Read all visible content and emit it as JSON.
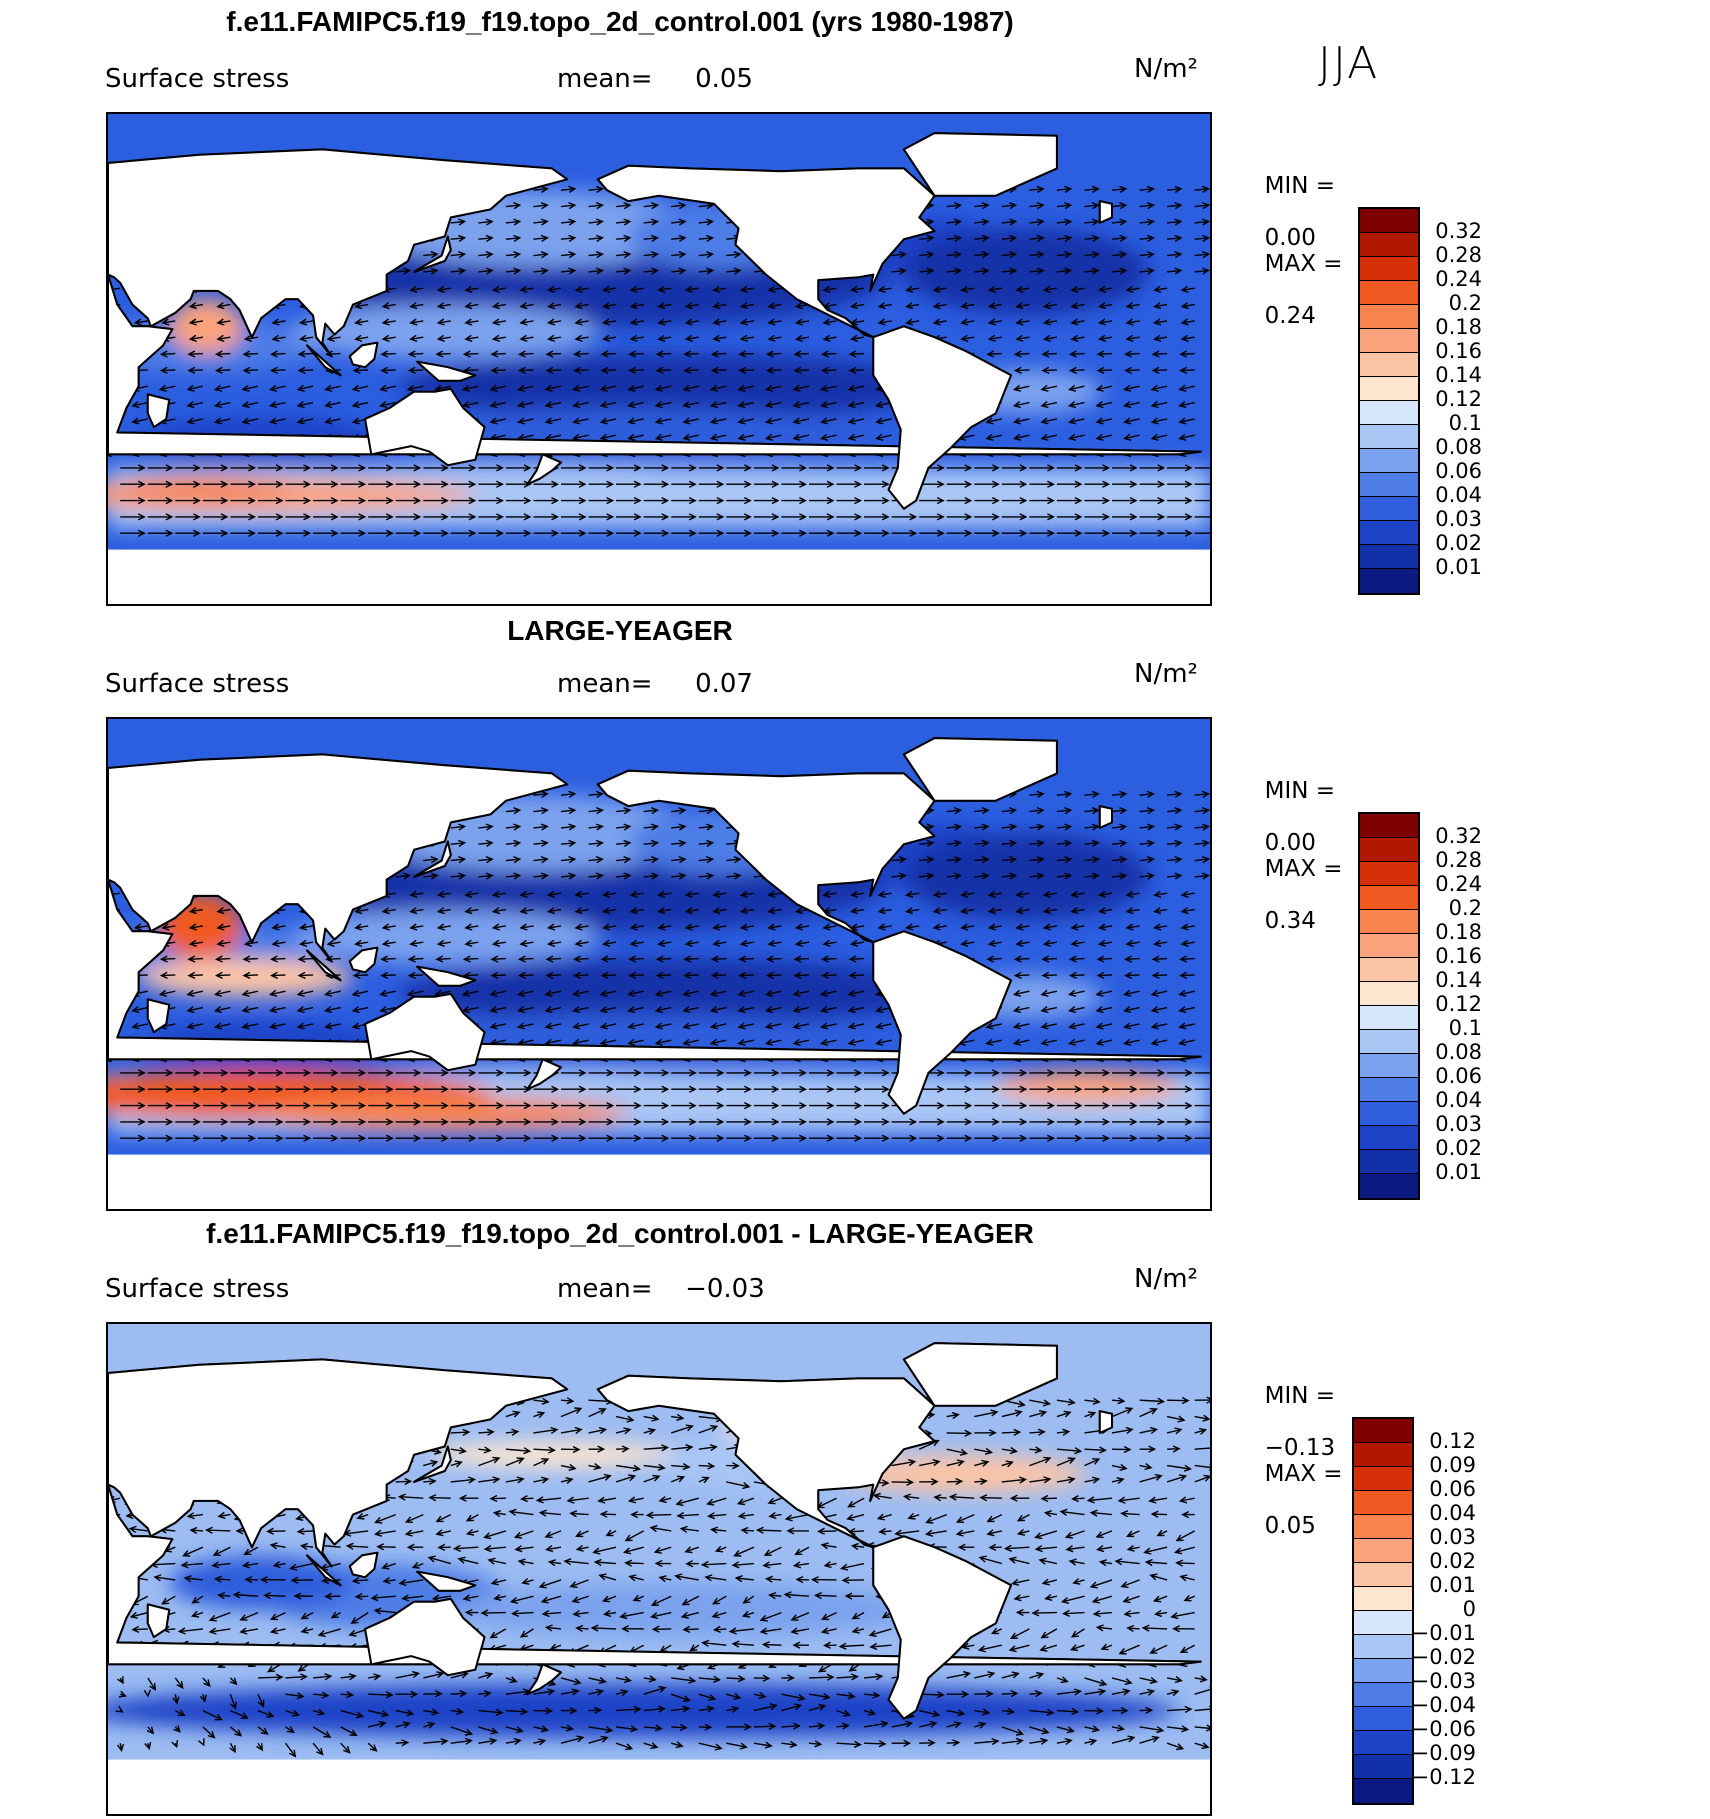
{
  "season": "JJA",
  "panels": [
    {
      "title": "f.e11.FAMIPC5.f19_f19.topo_2d_control.001 (yrs 1980-1987)",
      "variable": "Surface stress",
      "mean_label": "mean=",
      "mean_value": "0.05",
      "units": "N/m²",
      "min_label": "MIN =",
      "min_value": "0.00",
      "max_label": "MAX =",
      "max_value": "0.24",
      "colorbar_labels": [
        "0.32",
        "0.28",
        "0.24",
        "0.2",
        "0.18",
        "0.16",
        "0.14",
        "0.12",
        "0.1",
        "0.08",
        "0.06",
        "0.04",
        "0.03",
        "0.02",
        "0.01"
      ]
    },
    {
      "title": "LARGE-YEAGER",
      "variable": "Surface stress",
      "mean_label": "mean=",
      "mean_value": "0.07",
      "units": "N/m²",
      "min_label": "MIN =",
      "min_value": "0.00",
      "max_label": "MAX =",
      "max_value": "0.34",
      "colorbar_labels": [
        "0.32",
        "0.28",
        "0.24",
        "0.2",
        "0.18",
        "0.16",
        "0.14",
        "0.12",
        "0.1",
        "0.08",
        "0.06",
        "0.04",
        "0.03",
        "0.02",
        "0.01"
      ]
    },
    {
      "title": "f.e11.FAMIPC5.f19_f19.topo_2d_control.001 - LARGE-YEAGER",
      "variable": "Surface stress",
      "mean_label": "mean=",
      "mean_value": "−0.03",
      "units": "N/m²",
      "min_label": "MIN =",
      "min_value": "−0.13",
      "max_label": "MAX =",
      "max_value": "0.05",
      "colorbar_labels": [
        "0.12",
        "0.09",
        "0.06",
        "0.04",
        "0.03",
        "0.02",
        "0.01",
        "0",
        "−0.01",
        "−0.02",
        "−0.03",
        "−0.04",
        "−0.06",
        "−0.09",
        "−0.12"
      ]
    }
  ],
  "colors": {
    "diverging_scale": [
      "#7f0000",
      "#b01800",
      "#d63008",
      "#f05a22",
      "#f8834e",
      "#fba37c",
      "#fcc4a6",
      "#fde5d0",
      "#d6e6fa",
      "#a9c6f5",
      "#7ba2ee",
      "#4e7de6",
      "#2f5ddc",
      "#1d43c7",
      "#1230a8",
      "#0a1a80"
    ]
  }
}
